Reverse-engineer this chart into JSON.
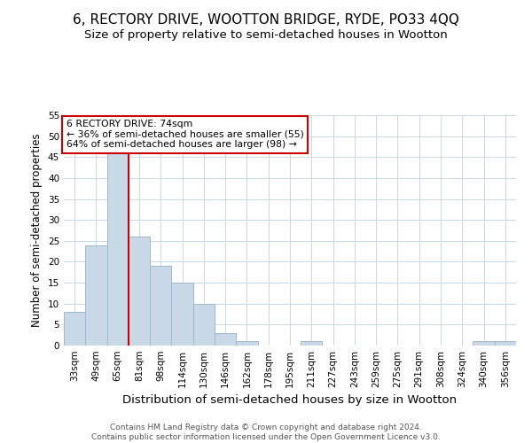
{
  "title": "6, RECTORY DRIVE, WOOTTON BRIDGE, RYDE, PO33 4QQ",
  "subtitle": "Size of property relative to semi-detached houses in Wootton",
  "xlabel": "Distribution of semi-detached houses by size in Wootton",
  "ylabel": "Number of semi-detached properties",
  "footer_line1": "Contains HM Land Registry data © Crown copyright and database right 2024.",
  "footer_line2": "Contains public sector information licensed under the Open Government Licence v3.0.",
  "bin_labels": [
    "33sqm",
    "49sqm",
    "65sqm",
    "81sqm",
    "98sqm",
    "114sqm",
    "130sqm",
    "146sqm",
    "162sqm",
    "178sqm",
    "195sqm",
    "211sqm",
    "227sqm",
    "243sqm",
    "259sqm",
    "275sqm",
    "291sqm",
    "308sqm",
    "324sqm",
    "340sqm",
    "356sqm"
  ],
  "bar_values": [
    8,
    24,
    46,
    26,
    19,
    15,
    10,
    3,
    1,
    0,
    0,
    1,
    0,
    0,
    0,
    0,
    0,
    0,
    0,
    1,
    1
  ],
  "bar_color": "#c9d9e8",
  "bar_edge_color": "#a0b8cc",
  "vline_x_index": 2,
  "vline_color": "#cc0000",
  "annotation_title": "6 RECTORY DRIVE: 74sqm",
  "annotation_line2": "← 36% of semi-detached houses are smaller (55)",
  "annotation_line3": "64% of semi-detached houses are larger (98) →",
  "annotation_box_color": "#cc0000",
  "ylim": [
    0,
    55
  ],
  "yticks": [
    0,
    5,
    10,
    15,
    20,
    25,
    30,
    35,
    40,
    45,
    50,
    55
  ],
  "background_color": "#ffffff",
  "grid_color": "#c8d8e8",
  "title_fontsize": 11,
  "subtitle_fontsize": 9.5,
  "xlabel_fontsize": 9.5,
  "ylabel_fontsize": 8.5,
  "tick_fontsize": 7.5,
  "footer_fontsize": 6.5
}
